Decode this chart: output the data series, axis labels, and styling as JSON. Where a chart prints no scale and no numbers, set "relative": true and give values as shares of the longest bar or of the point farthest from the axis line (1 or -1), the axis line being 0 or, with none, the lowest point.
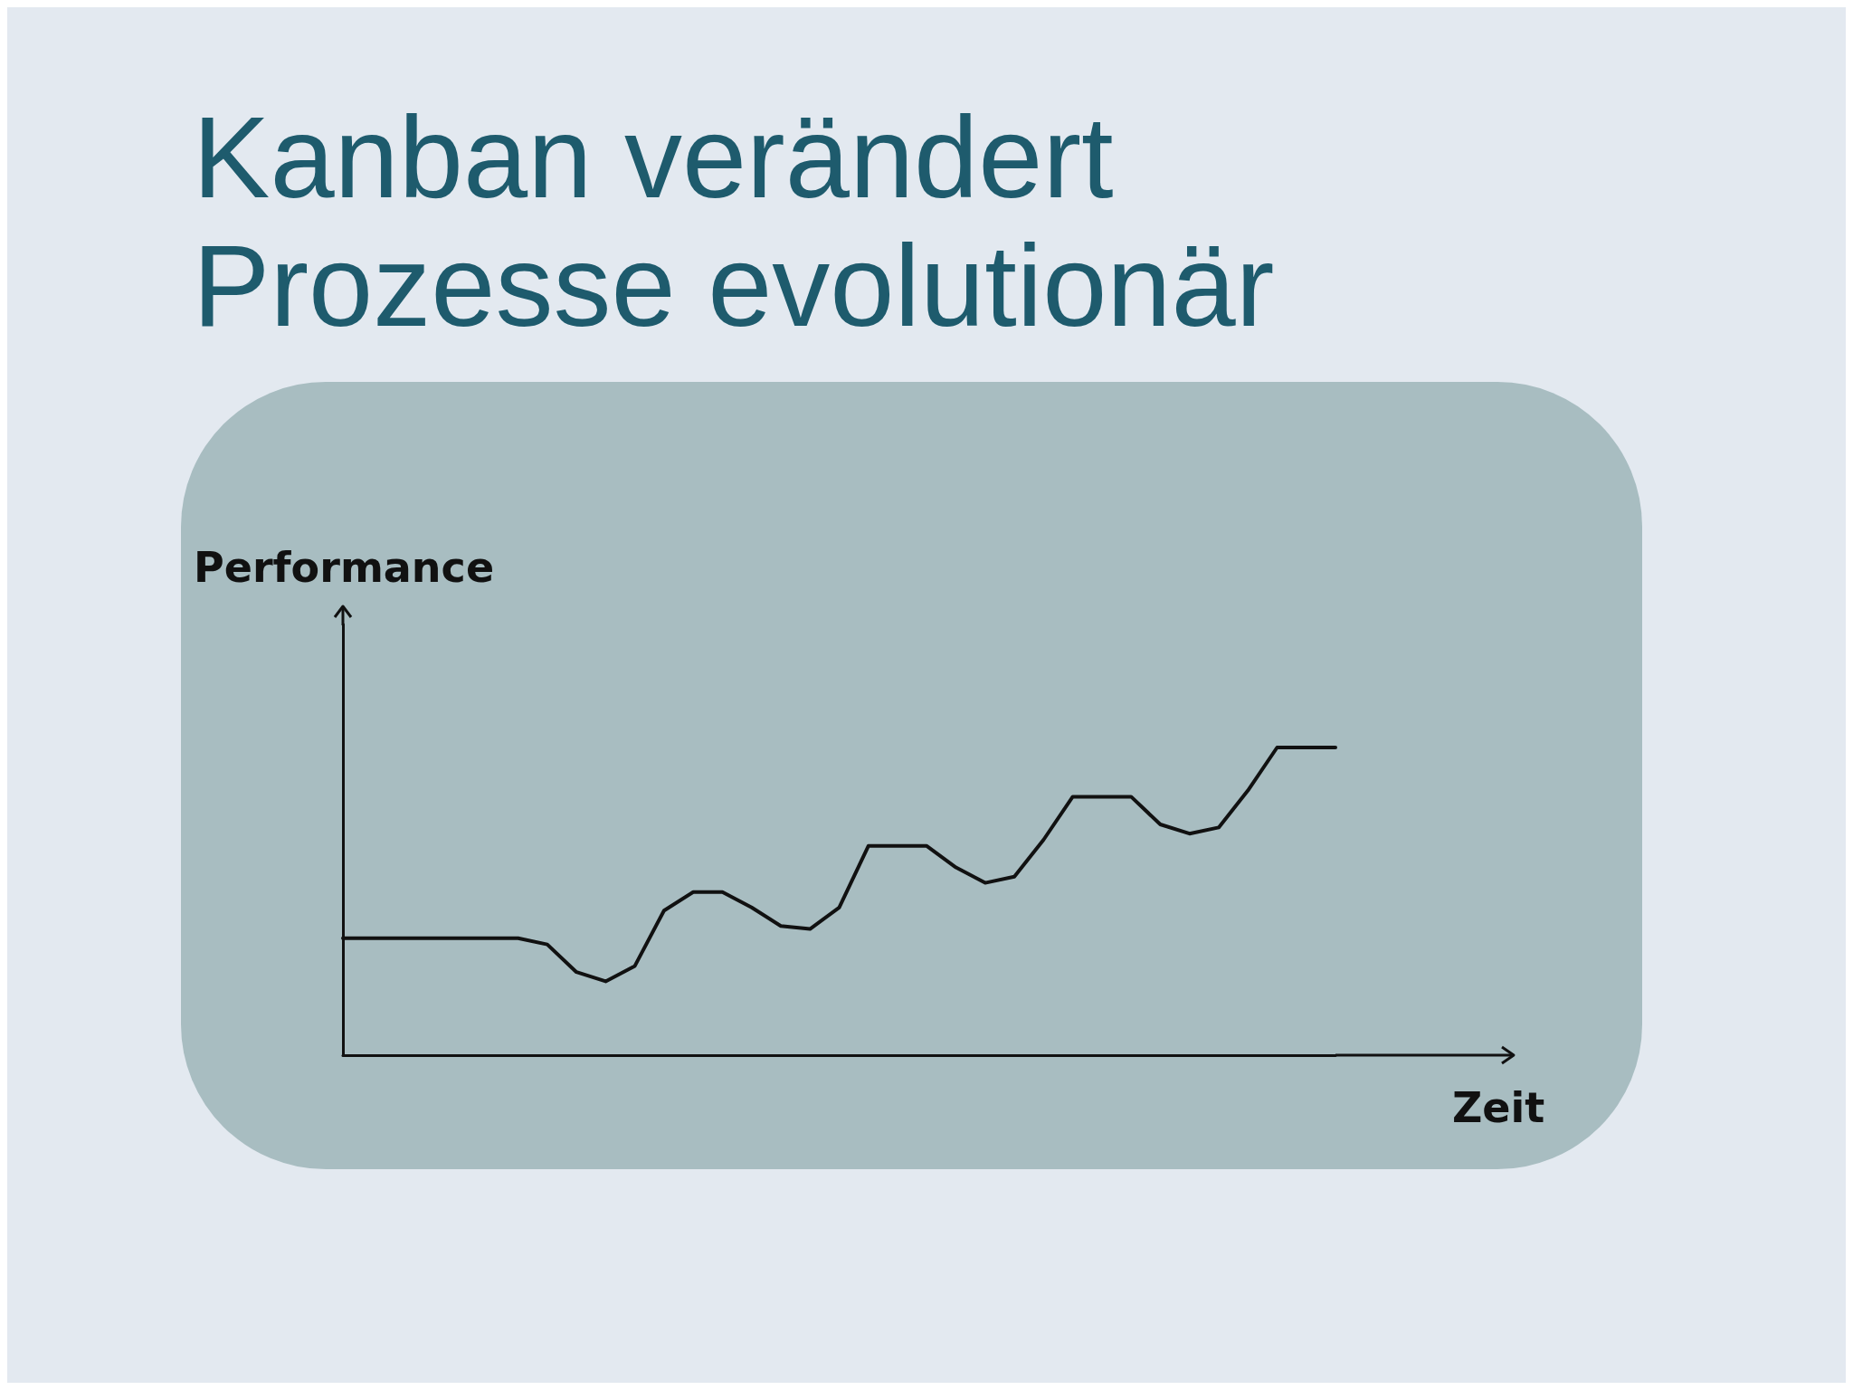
{
  "chart_data": {
    "type": "line",
    "title": "Kanban verändert Prozesse evolutionär",
    "xlabel": "Zeit",
    "ylabel": "Performance",
    "relative": true,
    "grid": false,
    "marker": "none",
    "line_style": "solid",
    "categories": [
      null,
      null,
      null,
      null,
      null,
      null,
      null,
      null,
      null,
      null,
      null,
      null,
      null,
      null,
      null,
      null,
      null,
      null,
      null,
      null,
      null,
      null,
      null,
      null,
      null,
      null,
      null,
      null,
      null,
      null,
      null,
      null,
      null,
      null,
      null
    ],
    "series": [
      {
        "color": "#111111",
        "values": [
          0.38,
          0.38,
          0.38,
          0.38,
          0.38,
          0.38,
          0.38,
          0.36,
          0.27,
          0.24,
          0.29,
          0.47,
          0.53,
          0.53,
          0.48,
          0.42,
          0.41,
          0.48,
          0.68,
          0.68,
          0.68,
          0.61,
          0.56,
          0.58,
          0.7,
          0.84,
          0.84,
          0.84,
          0.75,
          0.72,
          0.74,
          0.86,
          1,
          1,
          1
        ]
      }
    ]
  }
}
